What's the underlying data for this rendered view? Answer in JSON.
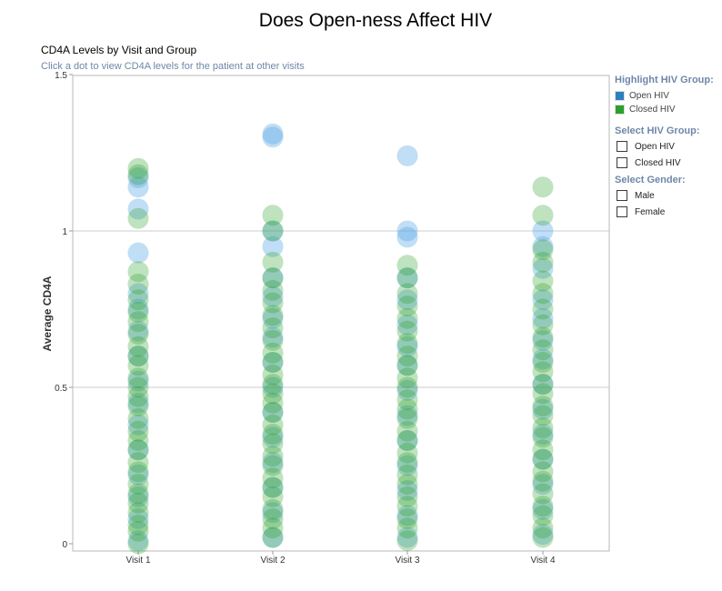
{
  "page_title": "Does Open-ness Affect HIV",
  "chart_title": "CD4A Levels by Visit and Group",
  "chart_subtitle": "Click a dot to view CD4A levels for the patient at other visits",
  "sidebar": {
    "highlight_heading": "Highlight HIV Group:",
    "highlight_items": [
      {
        "label": "Open HIV",
        "color": "#2f7fbf"
      },
      {
        "label": "Closed HIV",
        "color": "#2ca02c"
      }
    ],
    "group_heading": "Select HIV Group:",
    "group_options": [
      "Open HIV",
      "Closed HIV"
    ],
    "gender_heading": "Select Gender:",
    "gender_options": [
      "Male",
      "Female"
    ]
  },
  "chart_data": {
    "type": "scatter",
    "title": "CD4A Levels by Visit and Group",
    "subtitle": "Click a dot to view CD4A levels for the patient at other visits",
    "ylabel": "Average CD4A",
    "xlabel": "",
    "categories": [
      "Visit 1",
      "Visit 2",
      "Visit 3",
      "Visit 4"
    ],
    "ylim": [
      0,
      1.5
    ],
    "yticks": [
      0,
      0.5,
      1,
      1.5
    ],
    "ytick_labels": [
      "0",
      "0.5",
      "1",
      "1.5"
    ],
    "grid": true,
    "series": [
      {
        "name": "Open HIV",
        "color": "#5aa9e6",
        "values": [
          [
            0.01,
            0.08,
            0.15,
            0.22,
            0.3,
            0.38,
            0.45,
            0.52,
            0.6,
            0.68,
            0.75,
            0.8,
            0.93,
            1.07,
            1.14,
            1.17
          ],
          [
            0.02,
            0.1,
            0.18,
            0.26,
            0.34,
            0.42,
            0.5,
            0.58,
            0.66,
            0.72,
            0.79,
            0.85,
            0.95,
            1.0,
            1.3,
            1.31
          ],
          [
            0.02,
            0.09,
            0.17,
            0.25,
            0.33,
            0.41,
            0.49,
            0.57,
            0.63,
            0.7,
            0.78,
            0.85,
            0.98,
            1.0,
            1.24
          ],
          [
            0.03,
            0.11,
            0.19,
            0.27,
            0.35,
            0.43,
            0.51,
            0.59,
            0.65,
            0.72,
            0.78,
            0.88,
            0.95,
            1.0
          ]
        ]
      },
      {
        "name": "Closed HIV",
        "color": "#2ca02c",
        "values": [
          [
            0.0,
            0.04,
            0.06,
            0.1,
            0.13,
            0.16,
            0.19,
            0.23,
            0.26,
            0.3,
            0.33,
            0.36,
            0.4,
            0.44,
            0.47,
            0.5,
            0.53,
            0.57,
            0.6,
            0.63,
            0.67,
            0.71,
            0.74,
            0.78,
            0.83,
            0.87,
            1.04,
            1.18,
            1.2
          ],
          [
            0.02,
            0.05,
            0.08,
            0.11,
            0.15,
            0.18,
            0.21,
            0.25,
            0.28,
            0.32,
            0.35,
            0.38,
            0.42,
            0.45,
            0.48,
            0.51,
            0.54,
            0.58,
            0.61,
            0.65,
            0.69,
            0.73,
            0.77,
            0.81,
            0.85,
            0.9,
            1.0,
            1.05
          ],
          [
            0.01,
            0.05,
            0.08,
            0.12,
            0.15,
            0.19,
            0.22,
            0.26,
            0.29,
            0.33,
            0.36,
            0.4,
            0.43,
            0.46,
            0.5,
            0.53,
            0.57,
            0.6,
            0.64,
            0.68,
            0.72,
            0.76,
            0.8,
            0.85,
            0.89
          ],
          [
            0.02,
            0.05,
            0.09,
            0.12,
            0.16,
            0.2,
            0.23,
            0.27,
            0.3,
            0.34,
            0.37,
            0.41,
            0.44,
            0.48,
            0.51,
            0.55,
            0.58,
            0.62,
            0.66,
            0.7,
            0.75,
            0.8,
            0.84,
            0.9,
            0.94,
            1.05,
            1.14
          ]
        ]
      }
    ]
  }
}
